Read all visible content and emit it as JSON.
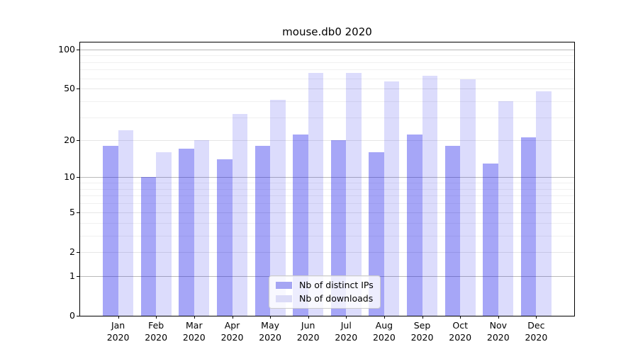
{
  "title": "mouse.db0 2020",
  "legend": {
    "items": [
      {
        "label": "Nb of distinct IPs",
        "color": "#a5a5f3"
      },
      {
        "label": "Nb of downloads",
        "color": "#dbdbf7"
      }
    ]
  },
  "y_axis": {
    "ticks": [
      {
        "value": 100,
        "label": "100"
      },
      {
        "value": 50,
        "label": "50"
      },
      {
        "value": 20,
        "label": "20"
      },
      {
        "value": 10,
        "label": "10"
      },
      {
        "value": 5,
        "label": "5"
      },
      {
        "value": 2,
        "label": "2"
      },
      {
        "value": 1,
        "label": "1"
      },
      {
        "value": 0,
        "label": "0"
      }
    ]
  },
  "x_axis": {
    "months": [
      "Jan",
      "Feb",
      "Mar",
      "Apr",
      "May",
      "Jun",
      "Jul",
      "Aug",
      "Sep",
      "Oct",
      "Nov",
      "Dec"
    ],
    "year": "2020"
  },
  "chart_data": {
    "type": "bar",
    "title": "mouse.db0 2020",
    "categories": [
      "Jan 2020",
      "Feb 2020",
      "Mar 2020",
      "Apr 2020",
      "May 2020",
      "Jun 2020",
      "Jul 2020",
      "Aug 2020",
      "Sep 2020",
      "Oct 2020",
      "Nov 2020",
      "Dec 2020"
    ],
    "series": [
      {
        "name": "Nb of distinct IPs",
        "swatch_color": "#a5a5f3",
        "fill_rgba": "rgba(20,20,235,0.38)",
        "values": [
          18,
          10,
          17,
          14,
          18,
          22,
          20,
          16,
          22,
          18,
          13,
          21
        ]
      },
      {
        "name": "Nb of downloads",
        "swatch_color": "#dbdbf7",
        "fill_rgba": "rgba(20,20,235,0.15)",
        "values": [
          24,
          16,
          20,
          32,
          41,
          66,
          66,
          57,
          63,
          59,
          40,
          48
        ]
      }
    ],
    "yscale": "log10(1+v)",
    "ylim": [
      0,
      113
    ],
    "xlabel": "",
    "ylabel": "",
    "y_tick_values": [
      0,
      1,
      2,
      5,
      10,
      20,
      50,
      100
    ],
    "grid": true,
    "grid_major_values": [
      1,
      10,
      100
    ],
    "grid_sub_values": [
      2,
      5,
      20,
      50
    ],
    "grid_minor_values": [
      3,
      4,
      6,
      7,
      8,
      9,
      30,
      40,
      60,
      70,
      80,
      90
    ],
    "legend_position": "lower center",
    "colors": {
      "grid_major": "#b9b9b9",
      "grid_sub": "#e6e6e6",
      "grid_minor": "#f0f0f0",
      "spine": "#000000",
      "text": "#000000",
      "background": "#ffffff"
    }
  }
}
